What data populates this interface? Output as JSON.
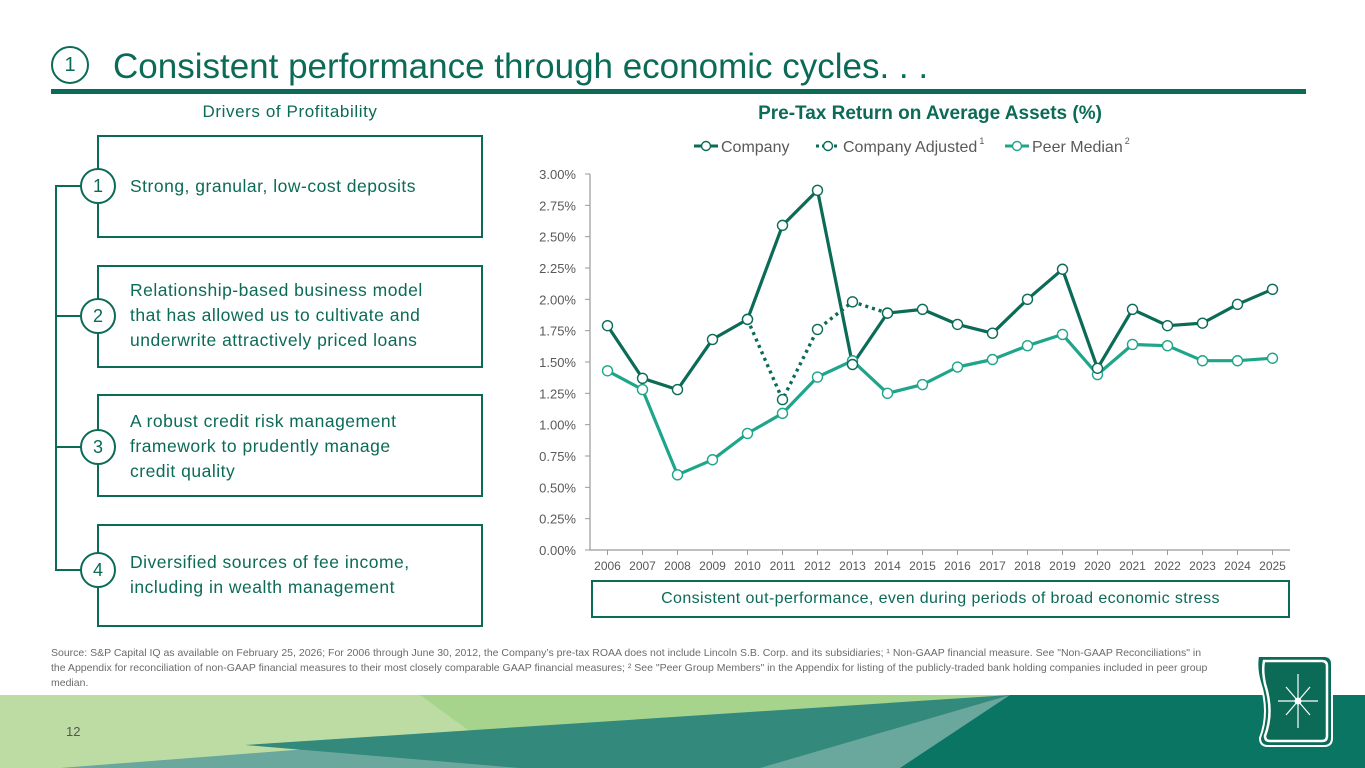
{
  "header": {
    "section_number": "1",
    "title": "Consistent performance through economic cycles. . ."
  },
  "drivers": {
    "title": "Drivers of Profitability",
    "items": [
      {
        "number": "1",
        "lines": [
          "Strong, granular, low-cost deposits"
        ]
      },
      {
        "number": "2",
        "lines": [
          "Relationship-based business model",
          "that has allowed us to cultivate and",
          "underwrite attractively priced loans"
        ]
      },
      {
        "number": "3",
        "lines": [
          "A robust credit risk management",
          "framework to prudently manage",
          "credit quality"
        ]
      },
      {
        "number": "4",
        "lines": [
          "Diversified sources of fee income,",
          "including in wealth management"
        ]
      }
    ]
  },
  "colors": {
    "brand": "#0b6b57",
    "company": "#0b6b57",
    "peer": "#1fa58a"
  },
  "chart_data": {
    "type": "line",
    "title": "Pre-Tax Return on Average Assets (%)",
    "xlabel": "",
    "ylabel": "",
    "ylim": [
      0,
      3.0
    ],
    "grid": false,
    "legend_position": "top",
    "y_ticks": [
      "0.00%",
      "0.25%",
      "0.50%",
      "0.75%",
      "1.00%",
      "1.25%",
      "1.50%",
      "1.75%",
      "2.00%",
      "2.25%",
      "2.50%",
      "2.75%",
      "3.00%"
    ],
    "y_tick_values": [
      0,
      0.25,
      0.5,
      0.75,
      1.0,
      1.25,
      1.5,
      1.75,
      2.0,
      2.25,
      2.5,
      2.75,
      3.0
    ],
    "x": [
      "2006",
      "2007",
      "2008",
      "2009",
      "2010",
      "2011",
      "2012",
      "2013",
      "2014",
      "2015",
      "2016",
      "2017",
      "2018",
      "2019",
      "2020",
      "2021",
      "2022",
      "2023",
      "2024",
      "2025"
    ],
    "series": [
      {
        "name": "Company",
        "superscript": "",
        "style": "solid",
        "values": [
          1.79,
          1.37,
          1.28,
          1.68,
          1.84,
          2.59,
          2.87,
          1.48,
          1.89,
          1.92,
          1.8,
          1.73,
          2.0,
          2.24,
          1.45,
          1.92,
          1.79,
          1.81,
          1.96,
          2.08
        ]
      },
      {
        "name": "Company Adjusted",
        "superscript": "1",
        "style": "dotted",
        "values": [
          null,
          null,
          null,
          null,
          1.84,
          1.2,
          1.76,
          1.98,
          1.89,
          null,
          null,
          null,
          null,
          null,
          null,
          null,
          null,
          null,
          null,
          null
        ]
      },
      {
        "name": "Peer Median",
        "superscript": "2",
        "style": "solid",
        "values": [
          1.43,
          1.28,
          0.6,
          0.72,
          0.93,
          1.09,
          1.38,
          1.51,
          1.25,
          1.32,
          1.46,
          1.52,
          1.63,
          1.72,
          1.4,
          1.64,
          1.63,
          1.51,
          1.51,
          1.53
        ]
      }
    ]
  },
  "callout": "Consistent out-performance, even during periods of broad economic stress",
  "footnote": "Source: S&P Capital IQ as available on February 25, 2026; For 2006 through June 30, 2012, the Company’s pre-tax ROAA does not include Lincoln S.B. Corp. and its subsidiaries; ¹ Non-GAAP financial measure. See \"Non-GAAP Reconciliations\" in the Appendix for reconciliation of non-GAAP financial measures to their most closely comparable GAAP financial measures; ² See \"Peer Group Members\" in the Appendix for listing of the publicly-traded bank holding companies included in peer group median.",
  "page_number": "12",
  "logo": {
    "icon": "star-shield-logo"
  }
}
